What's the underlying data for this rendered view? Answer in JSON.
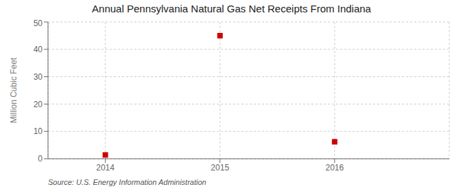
{
  "chart_data": {
    "type": "scatter",
    "title": "Annual Pennsylvania Natural Gas Net Receipts From Indiana",
    "ylabel": "Million Cubic Feet",
    "annotations": [
      "Source: U.S. Energy Information Administration"
    ],
    "x": [
      2014,
      2015,
      2016
    ],
    "values": [
      1.4,
      45.0,
      6.2
    ],
    "xlim": [
      2013.5,
      2017.0
    ],
    "ylim": [
      0,
      50
    ],
    "xticks": [
      2014,
      2015,
      2016
    ],
    "yticks": [
      0,
      10,
      20,
      30,
      40,
      50
    ],
    "color": "#cc0000",
    "marker": "square",
    "grid": true
  }
}
